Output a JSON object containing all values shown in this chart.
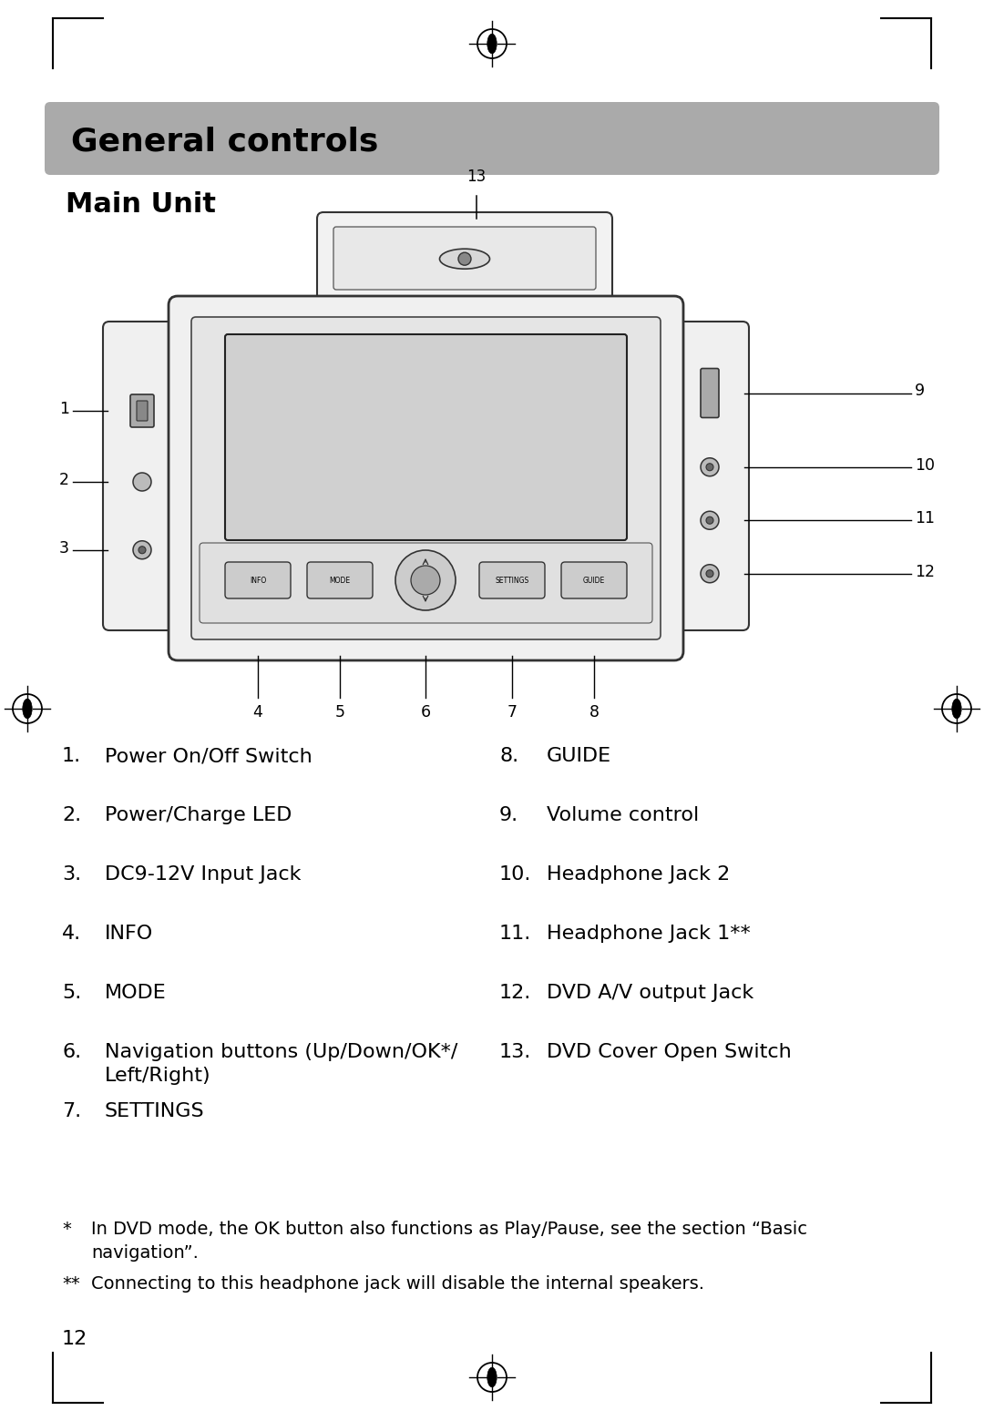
{
  "title": "General controls",
  "subtitle": "Main Unit",
  "bg_color": "#ffffff",
  "header_bg": "#aaaaaa",
  "header_text_color": "#000000",
  "left_items": [
    [
      1,
      "Power On/Off Switch",
      ""
    ],
    [
      2,
      "Power/Charge LED",
      ""
    ],
    [
      3,
      "DC9-12V Input Jack",
      ""
    ],
    [
      4,
      "INFO",
      ""
    ],
    [
      5,
      "MODE",
      ""
    ],
    [
      6,
      "Navigation buttons (Up/Down/OK*/",
      "Left/Right)"
    ],
    [
      7,
      "SETTINGS",
      ""
    ]
  ],
  "right_items": [
    [
      8,
      "GUIDE",
      ""
    ],
    [
      9,
      "Volume control",
      ""
    ],
    [
      10,
      "Headphone Jack 2",
      ""
    ],
    [
      11,
      "Headphone Jack 1**",
      ""
    ],
    [
      12,
      "DVD A/V output Jack",
      ""
    ],
    [
      13,
      "DVD Cover Open Switch",
      ""
    ]
  ],
  "footnote1_star": "*",
  "footnote1_text": "In DVD mode, the OK button also functions as Play/Pause, see the section “Basic",
  "footnote1_text2": "navigation”.",
  "footnote2_star": "**",
  "footnote2_text": "Connecting to this headphone jack will disable the internal speakers.",
  "page_number": "12"
}
